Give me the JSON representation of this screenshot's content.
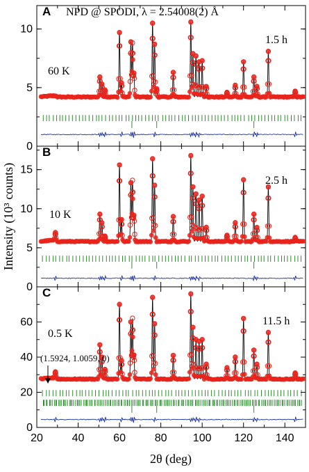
{
  "figure": {
    "xlabel": "2θ (deg)",
    "ylabel": "Intensity (10³ counts)",
    "x_ticks": [
      "20",
      "40",
      "60",
      "80",
      "100",
      "120",
      "140"
    ]
  },
  "colors": {
    "observed": "#e8241c",
    "calculated": "#000000",
    "difference": "#1a2fa0",
    "bragg": "#2e8b2e"
  },
  "chart_data": [
    {
      "type": "scatter",
      "panel": "A",
      "title": "NPD @ SPODI, λ = 2.54008(2) Å",
      "temperature": "60 K",
      "time": "1.5 h",
      "annotation": "",
      "xlim": [
        20,
        150
      ],
      "ylim": [
        0,
        12
      ],
      "y_ticks": [
        "0",
        "5",
        "10"
      ],
      "background": 4.2,
      "difference_level": 1.0,
      "bragg_rows": [
        2.4
      ],
      "bragg_long": [
        66,
        78,
        125
      ],
      "peaks": [
        [
          50.5,
          5.9
        ],
        [
          51.5,
          5.3
        ],
        [
          53,
          4.8
        ],
        [
          60,
          9.7
        ],
        [
          61,
          5.4
        ],
        [
          65.5,
          8.9
        ],
        [
          66.3,
          8.8
        ],
        [
          67,
          6.2
        ],
        [
          76,
          10.5
        ],
        [
          77,
          8.7
        ],
        [
          78,
          4.9
        ],
        [
          86,
          6.3
        ],
        [
          94.5,
          10.6
        ],
        [
          95.5,
          7.9
        ],
        [
          97,
          7.7
        ],
        [
          98.5,
          7.2
        ],
        [
          100,
          7.3
        ],
        [
          102,
          5.1
        ],
        [
          112,
          4.6
        ],
        [
          116,
          5.2
        ],
        [
          120,
          7.2
        ],
        [
          125,
          5.9
        ],
        [
          126.5,
          5.1
        ],
        [
          132,
          8.1
        ],
        [
          145,
          4.7
        ]
      ],
      "series": [
        {
          "name": "observed"
        },
        {
          "name": "calculated"
        },
        {
          "name": "difference"
        }
      ]
    },
    {
      "type": "scatter",
      "panel": "B",
      "title": "",
      "temperature": "10 K",
      "time": "2.5 h",
      "annotation": "",
      "xlim": [
        20,
        150
      ],
      "ylim": [
        0,
        18
      ],
      "y_ticks": [
        "0",
        "5",
        "10",
        "15"
      ],
      "background": 5.8,
      "difference_level": 1.1,
      "bragg_rows": [
        3.6
      ],
      "bragg_long": [
        66,
        78,
        125
      ],
      "peaks": [
        [
          29,
          6.8
        ],
        [
          50.5,
          9.3
        ],
        [
          51.5,
          8.2
        ],
        [
          53,
          6.5
        ],
        [
          60,
          15.6
        ],
        [
          61,
          8.6
        ],
        [
          65.5,
          13.3
        ],
        [
          66.3,
          13.6
        ],
        [
          67,
          9.1
        ],
        [
          76,
          16.4
        ],
        [
          77,
          13.0
        ],
        [
          86,
          9.0
        ],
        [
          94.5,
          16.8
        ],
        [
          95.5,
          12.8
        ],
        [
          97,
          11.9
        ],
        [
          98.5,
          11.1
        ],
        [
          100,
          11.6
        ],
        [
          102,
          7.6
        ],
        [
          112,
          6.6
        ],
        [
          116,
          8.2
        ],
        [
          120,
          13.7
        ],
        [
          125,
          9.3
        ],
        [
          126.5,
          7.6
        ],
        [
          132,
          12.8
        ],
        [
          145,
          6.3
        ]
      ],
      "series": [
        {
          "name": "observed"
        },
        {
          "name": "calculated"
        },
        {
          "name": "difference"
        }
      ]
    },
    {
      "type": "scatter",
      "panel": "C",
      "title": "",
      "temperature": "0.5 K",
      "time": "11.5 h",
      "annotation": "(1.5924, 1.0059, 0)",
      "annotation_x": 26,
      "xlim": [
        20,
        150
      ],
      "ylim": [
        0,
        80
      ],
      "y_ticks": [
        "0",
        "20",
        "40",
        "60"
      ],
      "background": 27.5,
      "difference_level": 4.5,
      "bragg_rows": [
        19.5,
        14.0
      ],
      "bragg_long": [
        66,
        78,
        125
      ],
      "peaks": [
        [
          29,
          31
        ],
        [
          50.5,
          47
        ],
        [
          51.5,
          40
        ],
        [
          53,
          33
        ],
        [
          60,
          70
        ],
        [
          61,
          38
        ],
        [
          65.5,
          60
        ],
        [
          66.3,
          62
        ],
        [
          67,
          41
        ],
        [
          76,
          74
        ],
        [
          77,
          59
        ],
        [
          86,
          41
        ],
        [
          94.5,
          76
        ],
        [
          95.5,
          57
        ],
        [
          97,
          50
        ],
        [
          98.5,
          49
        ],
        [
          100,
          50
        ],
        [
          102,
          36
        ],
        [
          112,
          34
        ],
        [
          116,
          40
        ],
        [
          120,
          62
        ],
        [
          125,
          44
        ],
        [
          126.5,
          36
        ],
        [
          132,
          54
        ],
        [
          145,
          31
        ]
      ],
      "series": [
        {
          "name": "observed"
        },
        {
          "name": "calculated"
        },
        {
          "name": "difference"
        }
      ]
    }
  ]
}
